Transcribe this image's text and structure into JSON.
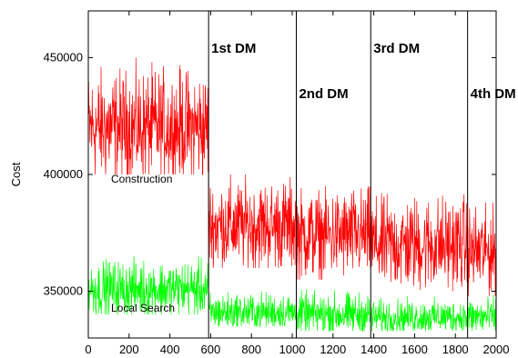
{
  "chart_data": {
    "type": "line",
    "title": "",
    "xlabel": "",
    "ylabel": "Cost",
    "xlim": [
      0,
      2000
    ],
    "ylim": [
      330000,
      470000
    ],
    "x_ticks": [
      0,
      200,
      400,
      600,
      800,
      1000,
      1200,
      1400,
      1600,
      1800,
      2000
    ],
    "y_ticks": [
      350000,
      400000,
      450000
    ],
    "x_tick_labels": [
      "0",
      "200",
      "400",
      "600",
      "800",
      "1000",
      "1200",
      "1400",
      "1600",
      "1800",
      "2000"
    ],
    "y_tick_labels": [
      "350000",
      "400000",
      "450000"
    ],
    "grid": false,
    "legend": "none",
    "series": [
      {
        "name": "Construction",
        "color": "#ff0000",
        "segments": [
          {
            "x_range": [
              0,
              590
            ],
            "mean": 420000,
            "band": [
              400000,
              450000
            ]
          },
          {
            "x_range": [
              590,
              1020
            ],
            "mean": 378000,
            "band": [
              360000,
              400000
            ]
          },
          {
            "x_range": [
              1020,
              1385
            ],
            "mean": 374000,
            "band": [
              355000,
              395000
            ]
          },
          {
            "x_range": [
              1385,
              1860
            ],
            "mean": 370000,
            "band": [
              350000,
              392000
            ]
          },
          {
            "x_range": [
              1860,
              2000
            ],
            "mean": 367000,
            "band": [
              348000,
              388000
            ]
          }
        ]
      },
      {
        "name": "Local Search",
        "color": "#00ff00",
        "segments": [
          {
            "x_range": [
              0,
              590
            ],
            "mean": 351000,
            "band": [
              340000,
              365000
            ]
          },
          {
            "x_range": [
              590,
              1020
            ],
            "mean": 341000,
            "band": [
              335000,
              352000
            ]
          },
          {
            "x_range": [
              1020,
              1385
            ],
            "mean": 340000,
            "band": [
              333000,
              352000
            ]
          },
          {
            "x_range": [
              1385,
              1860
            ],
            "mean": 339000,
            "band": [
              333000,
              348000
            ]
          },
          {
            "x_range": [
              1860,
              2000
            ],
            "mean": 339000,
            "band": [
              333000,
              350000
            ]
          }
        ]
      }
    ],
    "vertical_markers": [
      {
        "x": 590,
        "label": "1st DM"
      },
      {
        "x": 1020,
        "label": "2nd DM"
      },
      {
        "x": 1385,
        "label": "3rd DM"
      },
      {
        "x": 1860,
        "label": "4th DM"
      }
    ]
  }
}
